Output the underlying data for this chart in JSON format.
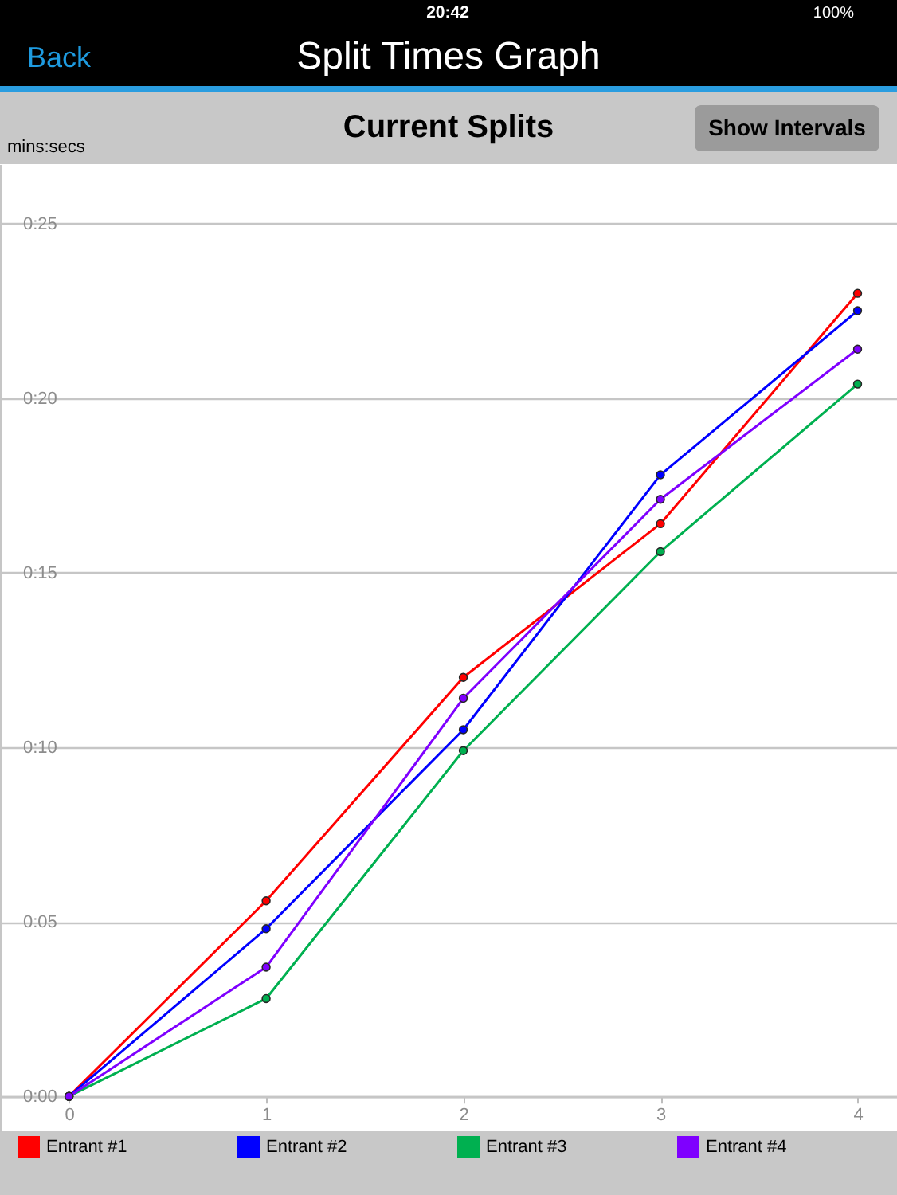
{
  "chart_data": {
    "type": "line",
    "title": "Split Times Graph",
    "subtitle": "Current Splits",
    "ylabel": "mins:secs",
    "annotations": [
      "Back",
      "Show Intervals",
      "20:42",
      "100%"
    ],
    "x": [
      0,
      1,
      2,
      3,
      4
    ],
    "series": [
      {
        "name": "Entrant #1",
        "color": "#ff0000",
        "values": [
          0,
          5.6,
          12.0,
          16.4,
          23.0
        ]
      },
      {
        "name": "Entrant #2",
        "color": "#0000ff",
        "values": [
          0,
          4.8,
          10.5,
          17.8,
          22.5
        ]
      },
      {
        "name": "Entrant #3",
        "color": "#00b050",
        "values": [
          0,
          2.8,
          9.9,
          15.6,
          20.4
        ]
      },
      {
        "name": "Entrant #4",
        "color": "#7f00ff",
        "values": [
          0,
          3.7,
          11.4,
          17.1,
          21.4
        ]
      }
    ],
    "xlim": [
      -0.35,
      4.2
    ],
    "xticks": [
      0,
      1,
      2,
      3,
      4
    ],
    "ylim": [
      -1,
      26.7
    ],
    "yticks": [
      {
        "value": 0,
        "label": "0:00"
      },
      {
        "value": 5,
        "label": "0:05"
      },
      {
        "value": 10,
        "label": "0:10"
      },
      {
        "value": 15,
        "label": "0:15"
      },
      {
        "value": 20,
        "label": "0:20"
      },
      {
        "value": 25,
        "label": "0:25"
      }
    ],
    "grid": "y",
    "legend": "bottom",
    "marker": "circle",
    "line_style": "solid"
  }
}
